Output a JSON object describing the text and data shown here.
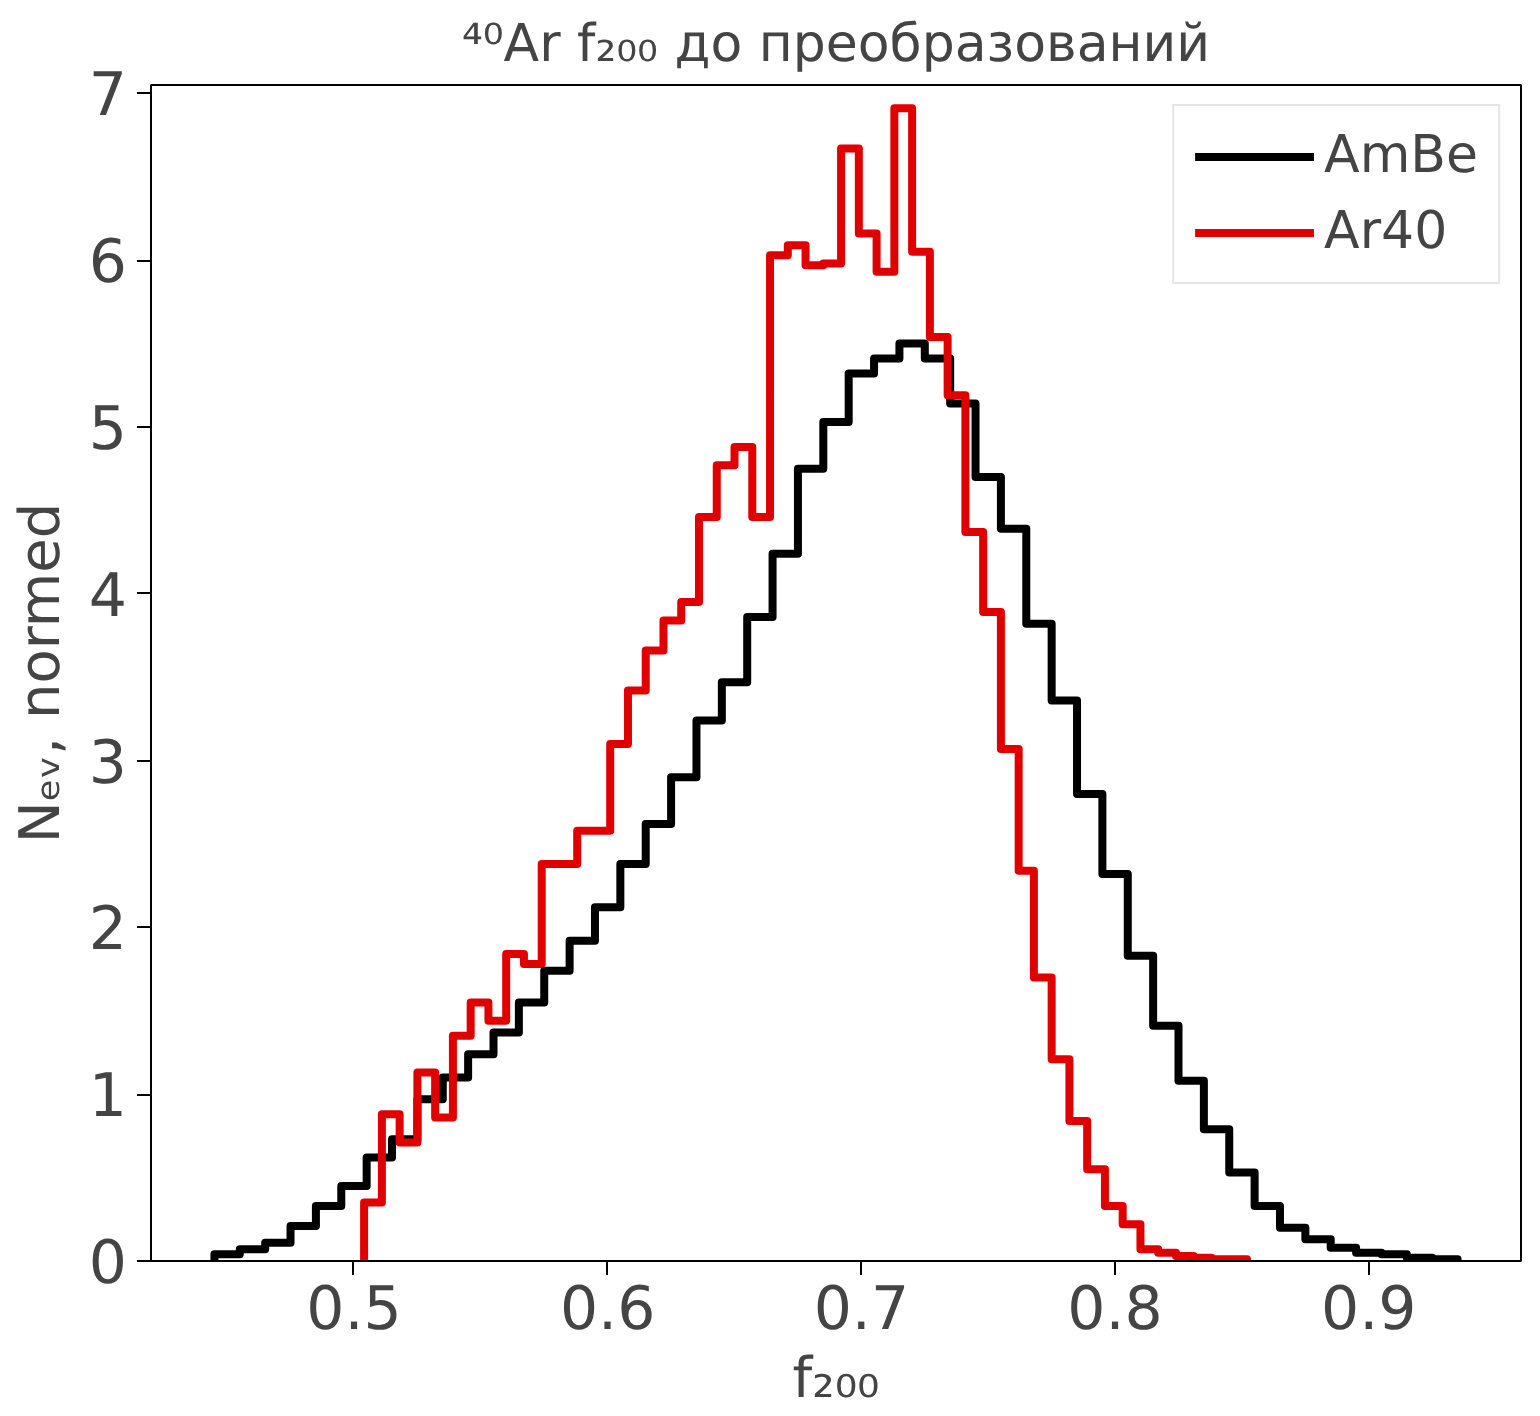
{
  "chart_data": {
    "type": "histogram",
    "title": "⁴⁰Ar f₂₀₀ до преобразований",
    "xlabel": "f₂₀₀",
    "ylabel": "Nₑᵥ, normed",
    "xlim": [
      0.42,
      0.96
    ],
    "ylim": [
      0,
      7.05
    ],
    "xticks": [
      0.5,
      0.6,
      0.7,
      0.8,
      0.9
    ],
    "yticks": [
      0,
      1,
      2,
      3,
      4,
      5,
      6,
      7
    ],
    "grid": false,
    "legend": "top right",
    "bins": [
      0.445,
      0.455,
      0.465,
      0.475,
      0.485,
      0.495,
      0.505,
      0.515,
      0.525,
      0.535,
      0.545,
      0.555,
      0.565,
      0.575,
      0.585,
      0.595,
      0.605,
      0.615,
      0.625,
      0.635,
      0.645,
      0.655,
      0.665,
      0.675,
      0.685,
      0.695,
      0.705,
      0.715,
      0.725,
      0.735,
      0.745,
      0.755,
      0.765,
      0.775,
      0.785,
      0.795,
      0.805,
      0.815,
      0.825,
      0.835,
      0.845,
      0.855,
      0.865,
      0.875,
      0.885,
      0.895,
      0.905,
      0.915,
      0.925,
      0.935
    ],
    "series": [
      {
        "name": "AmBe",
        "color": "#000000",
        "values": [
          0.04,
          0.07,
          0.11,
          0.21,
          0.33,
          0.45,
          0.62,
          0.73,
          0.97,
          1.1,
          1.24,
          1.37,
          1.55,
          1.74,
          1.92,
          2.12,
          2.38,
          2.62,
          2.9,
          3.24,
          3.47,
          3.86,
          4.24,
          4.75,
          5.03,
          5.32,
          5.41,
          5.5,
          5.41,
          5.14,
          4.7,
          4.39,
          3.82,
          3.36,
          2.8,
          2.32,
          1.83,
          1.41,
          1.08,
          0.79,
          0.53,
          0.33,
          0.2,
          0.13,
          0.08,
          0.05,
          0.04,
          0.02,
          0.01
        ]
      },
      {
        "name": "Ar40",
        "color": "#e00000",
        "bins": [
          0.504,
          0.511,
          0.518,
          0.525,
          0.532,
          0.539,
          0.546,
          0.553,
          0.56,
          0.567,
          0.574,
          0.581,
          0.588,
          0.594,
          0.601,
          0.608,
          0.615,
          0.622,
          0.629,
          0.636,
          0.643,
          0.65,
          0.657,
          0.664,
          0.671,
          0.678,
          0.685,
          0.692,
          0.699,
          0.706,
          0.713,
          0.72,
          0.727,
          0.734,
          0.741,
          0.748,
          0.755,
          0.762,
          0.768,
          0.775,
          0.782,
          0.789,
          0.796,
          0.803,
          0.81,
          0.817,
          0.824,
          0.831,
          0.838,
          0.845,
          0.852
        ],
        "values": [
          0.35,
          0.88,
          0.71,
          1.13,
          0.86,
          1.35,
          1.55,
          1.44,
          1.84,
          1.78,
          2.38,
          2.38,
          2.58,
          2.58,
          3.1,
          3.42,
          3.66,
          3.84,
          3.95,
          4.46,
          4.77,
          4.88,
          4.46,
          6.03,
          6.09,
          5.97,
          5.98,
          6.67,
          6.16,
          5.93,
          6.91,
          6.05,
          5.54,
          5.19,
          4.37,
          3.89,
          3.07,
          2.34,
          1.7,
          1.21,
          0.84,
          0.55,
          0.33,
          0.22,
          0.07,
          0.05,
          0.03,
          0.02,
          0.01,
          0.01
        ]
      }
    ]
  }
}
